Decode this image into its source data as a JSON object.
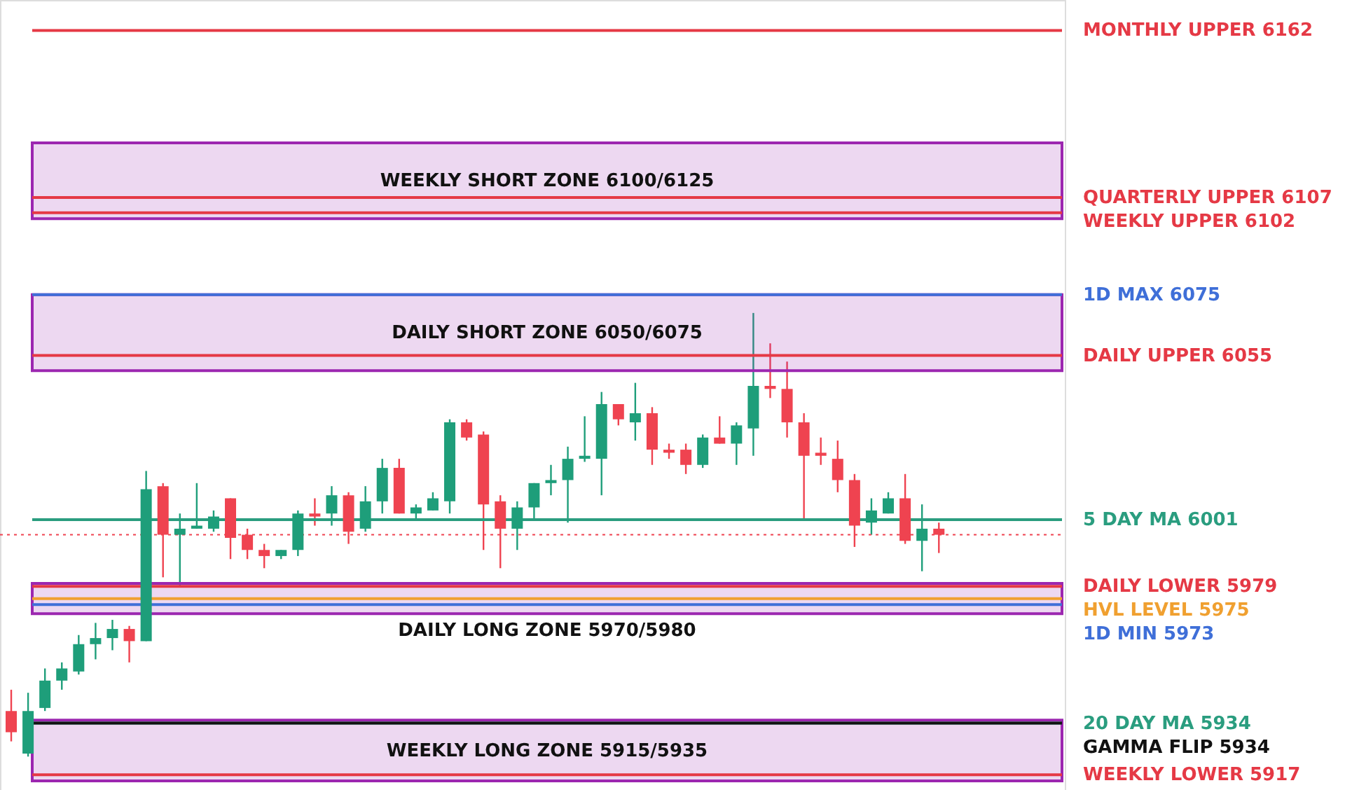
{
  "chart_data": {
    "type": "candlestick",
    "categories": [
      null,
      null,
      null,
      null,
      null,
      null,
      null,
      null,
      null,
      null,
      null,
      null,
      null,
      null,
      null,
      null,
      null,
      null,
      null,
      null,
      null,
      null,
      null,
      null,
      null,
      null,
      null,
      null,
      null,
      null,
      null,
      null,
      null,
      null,
      null,
      null,
      null,
      null,
      null,
      null,
      null,
      null,
      null,
      null,
      null,
      null,
      null,
      null,
      null,
      null,
      null,
      null,
      null,
      null,
      null,
      null
    ],
    "ohlc": [
      [
        5938,
        5945,
        5928,
        5931
      ],
      [
        5924,
        5944,
        5923,
        5938
      ],
      [
        5939,
        5952,
        5938,
        5948
      ],
      [
        5948,
        5954,
        5945,
        5952
      ],
      [
        5951,
        5963,
        5950,
        5960
      ],
      [
        5960,
        5967,
        5955,
        5962
      ],
      [
        5962,
        5968,
        5958,
        5965
      ],
      [
        5965,
        5966,
        5954,
        5961
      ],
      [
        5961,
        6017,
        5961,
        6011
      ],
      [
        6012,
        6013,
        5982,
        5996
      ],
      [
        5996,
        6003,
        5979,
        5998
      ],
      [
        5998,
        6013,
        5998,
        5999
      ],
      [
        5998,
        6004,
        5997,
        6002
      ],
      [
        6008,
        6008,
        5988,
        5995
      ],
      [
        5996,
        5998,
        5988,
        5991
      ],
      [
        5991,
        5993,
        5985,
        5989
      ],
      [
        5989,
        5991,
        5988,
        5991
      ],
      [
        5991,
        6004,
        5989,
        6003
      ],
      [
        6003,
        6008,
        5999,
        6002
      ],
      [
        6003,
        6012,
        5999,
        6009
      ],
      [
        6009,
        6010,
        5993,
        5997
      ],
      [
        5998,
        6012,
        5997,
        6007
      ],
      [
        6007,
        6021,
        6003,
        6018
      ],
      [
        6018,
        6021,
        6003,
        6003
      ],
      [
        6003,
        6006,
        6001,
        6005
      ],
      [
        6004,
        6010,
        6004,
        6008
      ],
      [
        6007,
        6034,
        6003,
        6033
      ],
      [
        6033,
        6034,
        6027,
        6028
      ],
      [
        6029,
        6030,
        5991,
        6006
      ],
      [
        6007,
        6009,
        5985,
        5998
      ],
      [
        5998,
        6007,
        5991,
        6005
      ],
      [
        6005,
        6013,
        6001,
        6013
      ],
      [
        6013,
        6019,
        6009,
        6014
      ],
      [
        6014,
        6025,
        6000,
        6021
      ],
      [
        6021,
        6035,
        6020,
        6022
      ],
      [
        6021,
        6043,
        6009,
        6039
      ],
      [
        6039,
        6039,
        6032,
        6034
      ],
      [
        6033,
        6046,
        6027,
        6036
      ],
      [
        6036,
        6038,
        6019,
        6024
      ],
      [
        6024,
        6026,
        6021,
        6023
      ],
      [
        6024,
        6026,
        6016,
        6019
      ],
      [
        6019,
        6029,
        6018,
        6028
      ],
      [
        6028,
        6035,
        6026,
        6026
      ],
      [
        6026,
        6033,
        6019,
        6032
      ],
      [
        6031,
        6069,
        6022,
        6045
      ],
      [
        6045,
        6059,
        6041,
        6044
      ],
      [
        6044,
        6053,
        6028,
        6033
      ],
      [
        6033,
        6036,
        6001,
        6022
      ],
      [
        6023,
        6028,
        6019,
        6022
      ],
      [
        6021,
        6027,
        6010,
        6014
      ],
      [
        6014,
        6016,
        5992,
        5999
      ],
      [
        6000,
        6008,
        5996,
        6004
      ],
      [
        6003,
        6010,
        6003,
        6008
      ],
      [
        6008,
        6016,
        5993,
        5994
      ],
      [
        5994,
        6006,
        5984,
        5998
      ],
      [
        5998,
        6000,
        5990,
        5996
      ]
    ],
    "colors": [
      "#ef4350",
      "#1e9e7a",
      "#1e9e7a",
      "#1e9e7a",
      "#1e9e7a",
      "#1e9e7a",
      "#1e9e7a",
      "#ef4350",
      "#1e9e7a",
      "#ef4350",
      "#1e9e7a",
      "#1e9e7a",
      "#1e9e7a",
      "#ef4350",
      "#ef4350",
      "#ef4350",
      "#1e9e7a",
      "#1e9e7a",
      "#ef4350",
      "#1e9e7a",
      "#ef4350",
      "#1e9e7a",
      "#1e9e7a",
      "#ef4350",
      "#1e9e7a",
      "#1e9e7a",
      "#1e9e7a",
      "#ef4350",
      "#ef4350",
      "#ef4350",
      "#1e9e7a",
      "#1e9e7a",
      "#1e9e7a",
      "#1e9e7a",
      "#1e9e7a",
      "#1e9e7a",
      "#ef4350",
      "#1e9e7a",
      "#ef4350",
      "#ef4350",
      "#ef4350",
      "#1e9e7a",
      "#ef4350",
      "#1e9e7a",
      "#1e9e7a",
      "#ef4350",
      "#ef4350",
      "#ef4350",
      "#ef4350",
      "#ef4350",
      "#ef4350",
      "#1e9e7a",
      "#1e9e7a",
      "#ef4350",
      "#1e9e7a",
      "#ef4350"
    ],
    "ylim": [
      5912,
      6172
    ],
    "tick_labels": false,
    "ref_lines": [
      {
        "axis": "y",
        "value": 6162,
        "label": "MONTHLY UPPER 6162",
        "color": "#e53945"
      },
      {
        "axis": "y",
        "value": 6107,
        "label": "QUARTERLY UPPER 6107",
        "color": "#e53945"
      },
      {
        "axis": "y",
        "value": 6102,
        "label": "WEEKLY UPPER 6102",
        "color": "#e53945"
      },
      {
        "axis": "y",
        "value": 6075,
        "label": "1D MAX 6075",
        "color": "#3f6fd8"
      },
      {
        "axis": "y",
        "value": 6055,
        "label": "DAILY UPPER 6055",
        "color": "#e53945"
      },
      {
        "axis": "y",
        "value": 6001,
        "label": "5 DAY MA 6001",
        "color": "#2a9d7f"
      },
      {
        "axis": "y",
        "value": 5996,
        "label": null,
        "color": "#ef4350",
        "line_style": "dotted"
      },
      {
        "axis": "y",
        "value": 5979,
        "label": "DAILY LOWER 5979",
        "color": "#e53945"
      },
      {
        "axis": "y",
        "value": 5975,
        "label": "HVL LEVEL 5975",
        "color": "#f0a030"
      },
      {
        "axis": "y",
        "value": 5973,
        "label": "1D MIN 5973",
        "color": "#3f6fd8"
      },
      {
        "axis": "y",
        "value": 5934,
        "label": "20 DAY MA 5934",
        "color": "#2a9d7f"
      },
      {
        "axis": "y",
        "value": 5934,
        "label": "GAMMA FLIP 5934",
        "color": "#111111"
      },
      {
        "axis": "y",
        "value": 5917,
        "label": "WEEKLY LOWER 5917",
        "color": "#e53945"
      }
    ],
    "bands": [
      {
        "axis": "y",
        "from": 6100,
        "to": 6125,
        "label": "WEEKLY SHORT ZONE 6100/6125",
        "color": "#9c27b0"
      },
      {
        "axis": "y",
        "from": 6050,
        "to": 6075,
        "label": "DAILY SHORT ZONE 6050/6075",
        "color": "#9c27b0"
      },
      {
        "axis": "y",
        "from": 5970,
        "to": 5980,
        "label": "DAILY LONG ZONE 5970/5980",
        "color": "#9c27b0"
      },
      {
        "axis": "y",
        "from": 5915,
        "to": 5935,
        "label": "WEEKLY LONG ZONE 5915/5935",
        "color": "#9c27b0"
      }
    ]
  }
}
